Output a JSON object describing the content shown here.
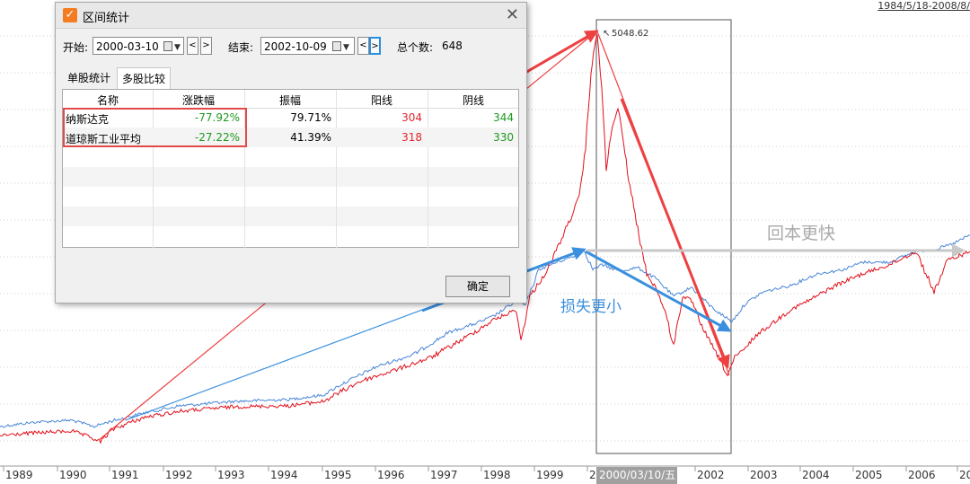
{
  "dialog": {
    "title": "区间统计",
    "start_label": "开始:",
    "start_date": "2000-03-10",
    "end_label": "结束:",
    "end_date": "2002-10-09",
    "total_label": "总个数:",
    "total_count": "648",
    "tabs": [
      "单股统计",
      "多股比较"
    ],
    "selected_tab": "多股比较",
    "columns": [
      "名称",
      "涨跌幅",
      "振幅",
      "阳线",
      "阴线"
    ],
    "rows": [
      {
        "name": "纳斯达克",
        "change": "-77.92%",
        "amplitude": "79.71%",
        "up": "304",
        "down": "344"
      },
      {
        "name": "道琼斯工业平均",
        "change": "-27.22%",
        "amplitude": "41.39%",
        "up": "318",
        "down": "330"
      }
    ],
    "ok_label": "确定",
    "prev_arrow": "<",
    "next_arrow": ">"
  },
  "chart": {
    "range_text": "1984/5/18-2008/8/",
    "peak_label": "5048.62",
    "cursor_date": "2000/03/10/五",
    "annotations": {
      "loss_smaller": "损失更小",
      "recover_faster": "回本更快"
    },
    "x_ticks": [
      "1989",
      "1990",
      "1991",
      "1992",
      "1993",
      "1994",
      "1995",
      "1996",
      "1997",
      "1998",
      "1999",
      "20",
      "2002",
      "2003",
      "2004",
      "2005",
      "2006",
      "20"
    ],
    "colors": {
      "nasdaq": "#e0101b",
      "dow": "#4a86d8",
      "red_arrow": "#ee4040",
      "blue_arrow": "#3a8fde",
      "gray_arrow": "#c8c8c8"
    }
  }
}
